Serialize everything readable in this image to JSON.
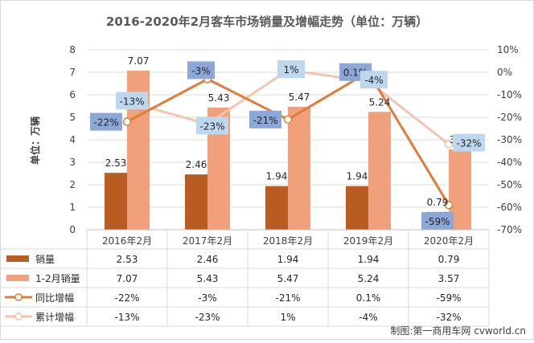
{
  "chart_data": {
    "type": "bar",
    "title": "2016-2020年2月客车市场销量及增幅走势（单位：万辆）",
    "ylabel": "单位：万辆",
    "ylim": [
      0,
      8
    ],
    "y2lim": [
      -70,
      10
    ],
    "y_ticks": [
      "0",
      "1",
      "2",
      "3",
      "4",
      "5",
      "6",
      "7",
      "8"
    ],
    "y2_ticks": [
      "-70%",
      "-60%",
      "-50%",
      "-40%",
      "-30%",
      "-20%",
      "-10%",
      "0%",
      "10%"
    ],
    "categories": [
      "2016年2月",
      "2017年2月",
      "2018年2月",
      "2019年2月",
      "2020年2月"
    ],
    "series": [
      {
        "name": "销量",
        "kind": "bar",
        "axis": "left",
        "color": "#b85c22",
        "values": [
          2.53,
          2.46,
          1.94,
          1.94,
          0.79
        ],
        "labels": [
          "2.53",
          "2.46",
          "1.94",
          "1.94",
          "0.79"
        ]
      },
      {
        "name": "1-2月销量",
        "kind": "bar",
        "axis": "left",
        "color": "#f0a07a",
        "values": [
          7.07,
          5.43,
          5.47,
          5.24,
          3.57
        ],
        "labels": [
          "7.07",
          "5.43",
          "5.47",
          "5.24",
          "3.57"
        ]
      },
      {
        "name": "同比增幅",
        "kind": "line",
        "axis": "right",
        "color": "#e07b39",
        "label_bg": "#8ba8d8",
        "values": [
          -22,
          -3,
          -21,
          0.1,
          -59
        ],
        "labels": [
          "-22%",
          "-3%",
          "-21%",
          "0.1%",
          "-59%"
        ]
      },
      {
        "name": "累计增幅",
        "kind": "line",
        "axis": "right",
        "color": "#f4c4b0",
        "label_bg": "#bdd7ee",
        "values": [
          -13,
          -23,
          1,
          -4,
          -32
        ],
        "labels": [
          "-13%",
          "-23%",
          "1%",
          "-4%",
          "-32%"
        ]
      }
    ],
    "grid": true,
    "legend": "bottom data table",
    "table_rows": [
      [
        "2.53",
        "2.46",
        "1.94",
        "1.94",
        "0.79"
      ],
      [
        "7.07",
        "5.43",
        "5.47",
        "5.24",
        "3.57"
      ],
      [
        "-22%",
        "-3%",
        "-21%",
        "0.1%",
        "-59%"
      ],
      [
        "-13%",
        "-23%",
        "1%",
        "-4%",
        "-32%"
      ]
    ],
    "watermark": "制图:第一商用车网 cvworld.cn"
  }
}
